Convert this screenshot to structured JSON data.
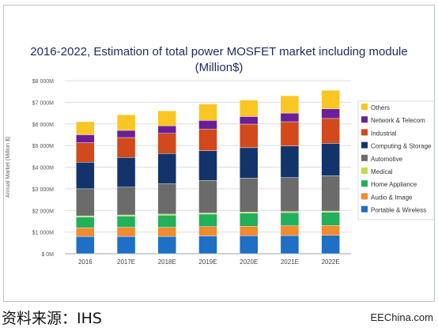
{
  "chart_data": {
    "type": "bar",
    "stacked": true,
    "title": "2016-2022, Estimation of total power MOSFET market including module",
    "subtitle": "(Million$)",
    "ylabel": "Annual Market (Million $)",
    "xlabel": "",
    "ylim": [
      0,
      8000
    ],
    "yticks": [
      0,
      1000,
      2000,
      3000,
      4000,
      5000,
      6000,
      7000,
      8000
    ],
    "ytick_labels": [
      "$ 0M",
      "$1 000M",
      "$2 000M",
      "$3 000M",
      "$4 000M",
      "$5 000M",
      "$6 000M",
      "$7 000M",
      "$8 000M"
    ],
    "grid": true,
    "legend_position": "right",
    "categories": [
      "2016",
      "2017E",
      "2018E",
      "2019E",
      "2020E",
      "2021E",
      "2022E"
    ],
    "series": [
      {
        "name": "Portable & Wireless",
        "color": "#1f6fc5",
        "values": [
          800,
          800,
          800,
          820,
          830,
          840,
          850
        ]
      },
      {
        "name": "Audio & Image",
        "color": "#f28a2e",
        "values": [
          400,
          420,
          420,
          430,
          440,
          450,
          450
        ]
      },
      {
        "name": "Home Appliance",
        "color": "#22b05a",
        "values": [
          500,
          520,
          560,
          580,
          600,
          610,
          620
        ]
      },
      {
        "name": "Medical",
        "color": "#c8d94a",
        "values": [
          50,
          50,
          50,
          50,
          50,
          50,
          50
        ]
      },
      {
        "name": "Automotive",
        "color": "#6b6b6b",
        "values": [
          1250,
          1290,
          1400,
          1500,
          1580,
          1570,
          1630
        ]
      },
      {
        "name": "Computing & Storage",
        "color": "#13346b",
        "values": [
          1230,
          1370,
          1400,
          1380,
          1400,
          1460,
          1500
        ]
      },
      {
        "name": "Industrial",
        "color": "#d2491c",
        "values": [
          900,
          920,
          930,
          1000,
          1090,
          1120,
          1150
        ]
      },
      {
        "name": "Network & Telecom",
        "color": "#6a1f9a",
        "values": [
          370,
          330,
          350,
          400,
          350,
          400,
          450
        ]
      },
      {
        "name": "Others",
        "color": "#f9c623",
        "values": [
          600,
          720,
          690,
          760,
          760,
          800,
          850
        ]
      }
    ]
  },
  "caption": "资料来源：IHS",
  "watermark": "EEChina.com"
}
